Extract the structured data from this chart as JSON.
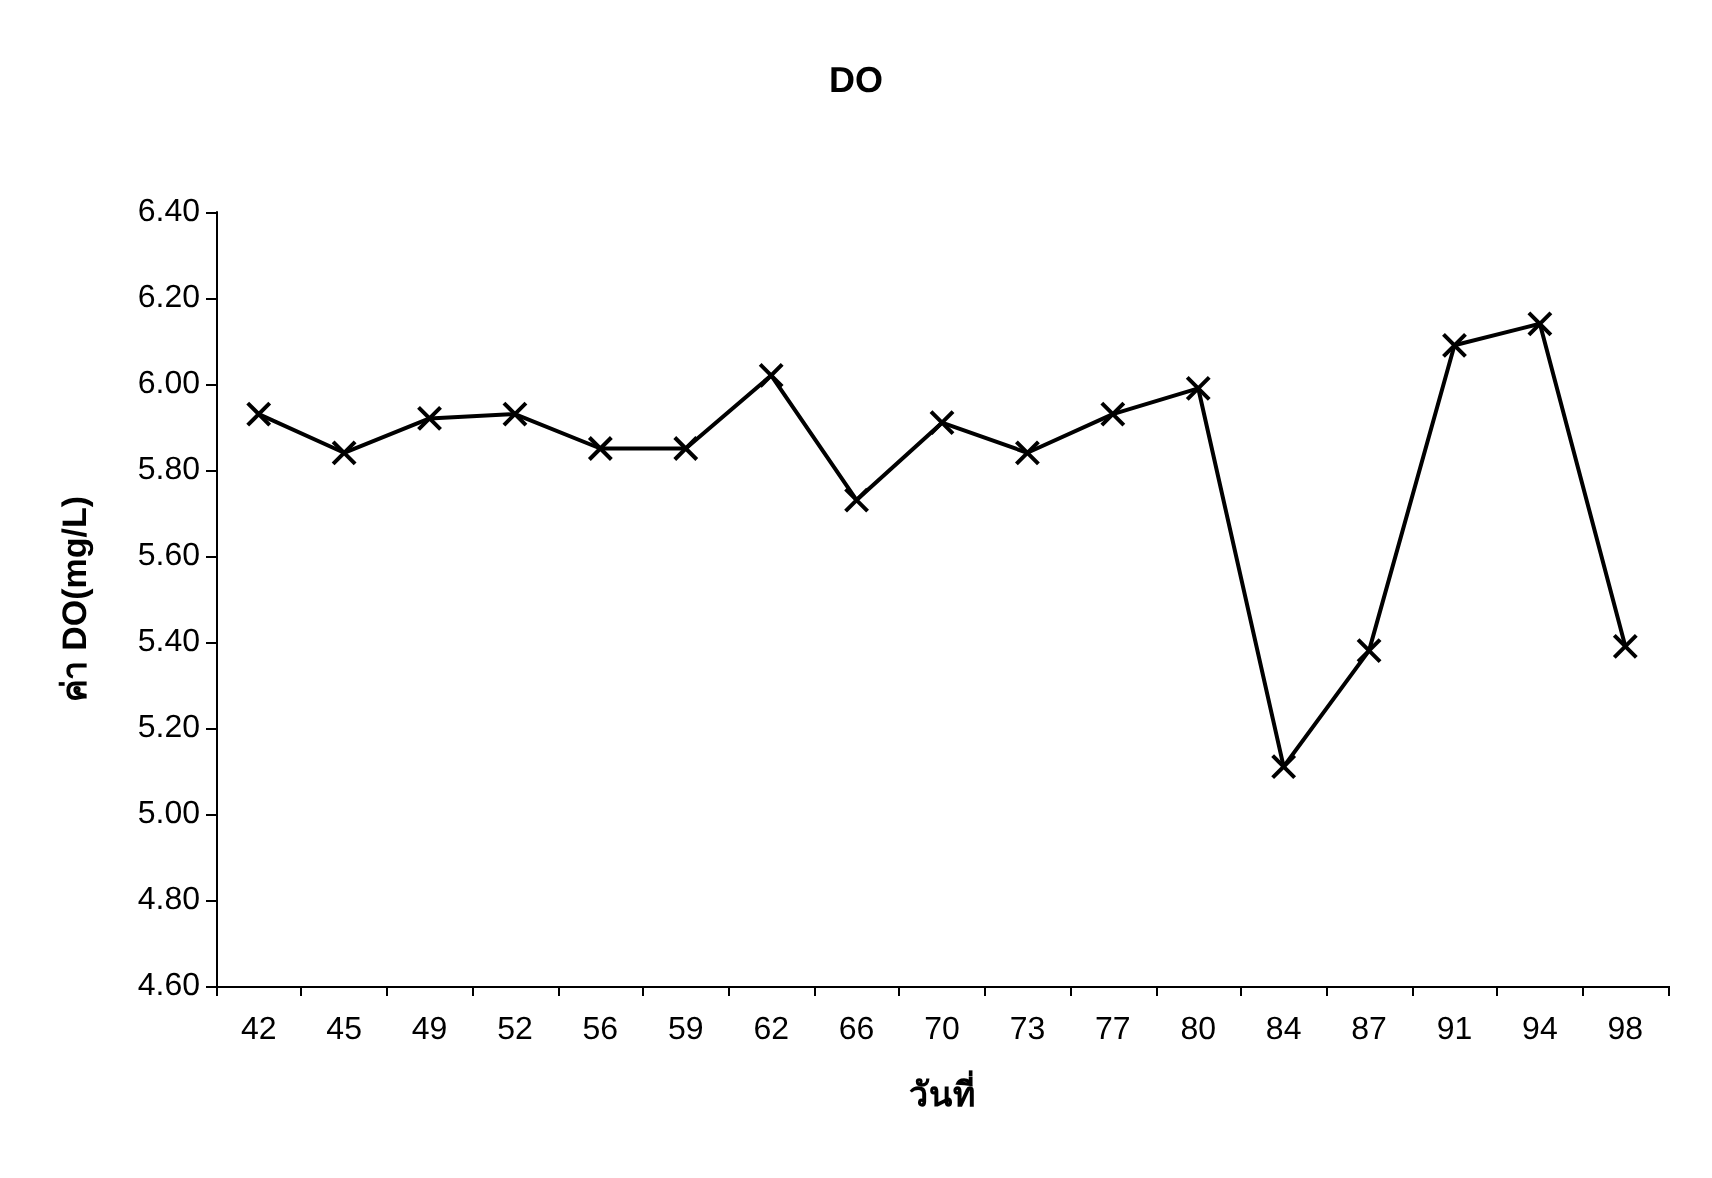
{
  "chart_data": {
    "type": "line",
    "title": "DO",
    "xlabel": "วันที่",
    "ylabel": "ค่า DO(mg/L)",
    "categories": [
      "42",
      "45",
      "49",
      "52",
      "56",
      "59",
      "62",
      "66",
      "70",
      "73",
      "77",
      "80",
      "84",
      "87",
      "91",
      "94",
      "98"
    ],
    "series": [
      {
        "color": "#000000",
        "values": [
          5.93,
          5.84,
          5.92,
          5.93,
          5.85,
          5.85,
          6.02,
          5.73,
          5.91,
          5.84,
          5.93,
          5.99,
          5.11,
          5.38,
          6.09,
          6.14,
          5.39
        ]
      }
    ],
    "ylim": [
      4.6,
      6.4
    ],
    "yticks": [
      {
        "value": 4.6,
        "label": "4.60"
      },
      {
        "value": 4.8,
        "label": "4.80"
      },
      {
        "value": 5.0,
        "label": "5.00"
      },
      {
        "value": 5.2,
        "label": "5.20"
      },
      {
        "value": 5.4,
        "label": "5.40"
      },
      {
        "value": 5.6,
        "label": "5.60"
      },
      {
        "value": 5.8,
        "label": "5.80"
      },
      {
        "value": 6.0,
        "label": "6.00"
      },
      {
        "value": 6.2,
        "label": "6.20"
      },
      {
        "value": 6.4,
        "label": "6.40"
      }
    ],
    "grid": false,
    "marker": "cross",
    "line_style": "solid"
  }
}
